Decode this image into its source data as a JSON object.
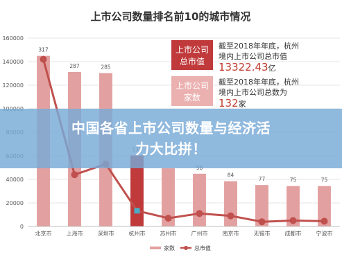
{
  "chart_data": {
    "type": "bar",
    "title": "上市公司数量排名前10的城市情况",
    "categories": [
      "北京市",
      "上海市",
      "深圳市",
      "杭州市",
      "苏州市",
      "广州市",
      "南京市",
      "无锡市",
      "成都市",
      "宁波市"
    ],
    "series": [
      {
        "name": "家数",
        "kind": "bar",
        "values": [
          317,
          287,
          285,
          132,
          108,
          98,
          84,
          77,
          75,
          75
        ]
      },
      {
        "name": "总市值",
        "kind": "line",
        "values": [
          142000,
          44000,
          53000,
          13322.43,
          7000,
          11000,
          9000,
          4000,
          5000,
          4500
        ]
      }
    ],
    "bar_data_labels": [
      "317",
      "287",
      "285",
      "132",
      "",
      "98",
      "84",
      "77",
      "75",
      "75"
    ],
    "yticks": [
      "0",
      "20000",
      "40000",
      "60000",
      "80000",
      "100000",
      "120000",
      "140000",
      "160000"
    ],
    "ylim": [
      0,
      160000
    ],
    "count_axis_max": 350,
    "legend_placement": "bottom",
    "colors": {
      "bar": "#e3a0a0",
      "bar_highlight": "#c0393b",
      "line": "#c0504d",
      "highlight_marker": "#4bacc6"
    }
  },
  "annotations": {
    "box1_line1": "上市公司",
    "box1_line2": "总市值",
    "note1_line1": "截至2018年年底，杭州",
    "note1_line2": "境内上市公司总市值",
    "note1_value": "13322.43",
    "note1_unit": "亿",
    "box2_line1": "上市公司",
    "box2_line2": "家数",
    "note2_line1": "截至2018年年底，杭州",
    "note2_line2": "境内上市公司总数为",
    "note2_value": "132",
    "note2_unit": "家"
  },
  "banner": {
    "text": "中国各省上市公司数量与经济活力大比拼！"
  }
}
